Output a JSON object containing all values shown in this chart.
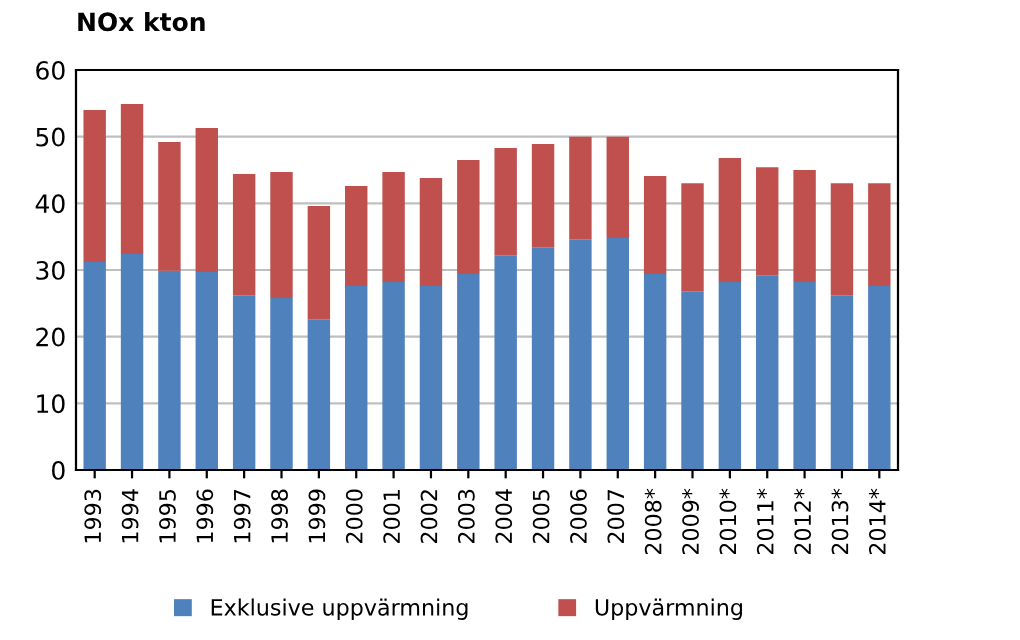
{
  "chart_data": {
    "type": "bar",
    "stacked": true,
    "title": "NOx kton",
    "categories": [
      "1993",
      "1994",
      "1995",
      "1996",
      "1997",
      "1998",
      "1999",
      "2000",
      "2001",
      "2002",
      "2003",
      "2004",
      "2005",
      "2006",
      "2007",
      "2008*",
      "2009*",
      "2010*",
      "2011*",
      "2012*",
      "2013*",
      "2014*"
    ],
    "series": [
      {
        "name": "Exklusive uppvärmning",
        "color": "#4f81bd",
        "values": [
          31.2,
          32.4,
          29.9,
          29.7,
          26.2,
          25.8,
          22.6,
          27.6,
          28.2,
          27.6,
          29.4,
          32.2,
          33.4,
          34.6,
          34.8,
          29.4,
          26.8,
          28.2,
          29.2,
          28.2,
          26.2,
          27.6
        ]
      },
      {
        "name": "Uppvärmning",
        "color": "#c0504d",
        "values": [
          22.8,
          22.5,
          19.3,
          21.6,
          18.2,
          18.9,
          17.0,
          15.0,
          16.5,
          16.2,
          17.1,
          16.1,
          15.5,
          15.4,
          15.2,
          14.7,
          16.2,
          18.6,
          16.2,
          16.8,
          16.8,
          15.4
        ]
      }
    ],
    "ylim": [
      0,
      60
    ],
    "yticks": [
      0,
      10,
      20,
      30,
      40,
      50,
      60
    ],
    "grid": "y",
    "legend": "bottom"
  }
}
